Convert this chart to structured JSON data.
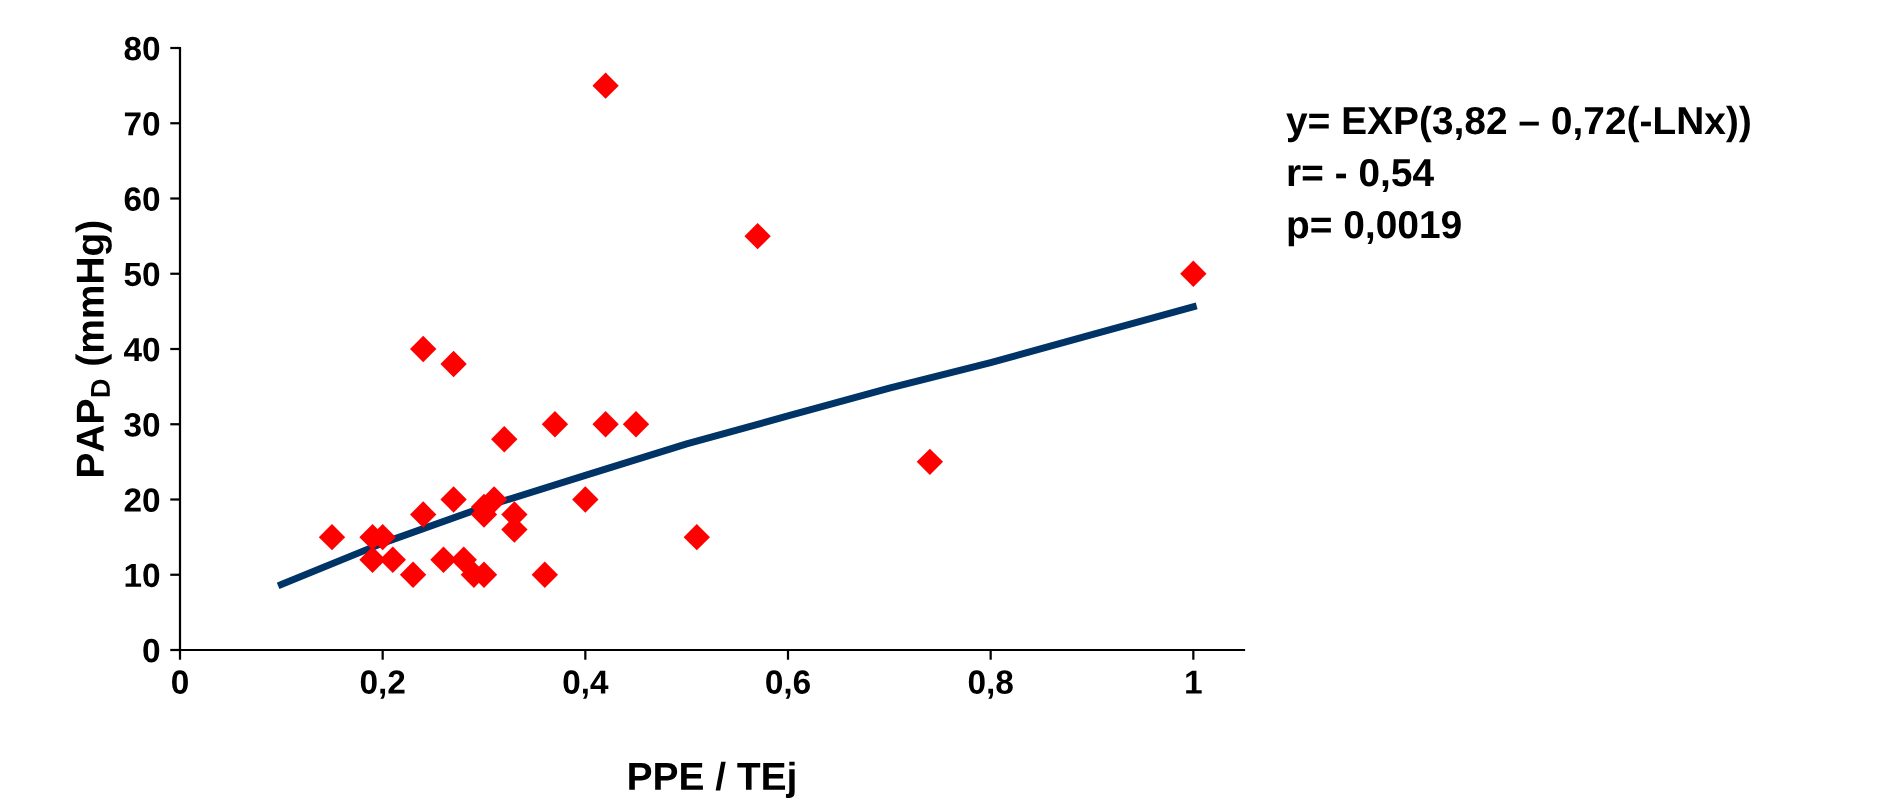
{
  "chart_data": {
    "type": "scatter",
    "xlabel": "PPE / TEj",
    "ylabel": "PAP$_{D}$ (mmHg)",
    "xlim": [
      0,
      1.05
    ],
    "xticks": [
      {
        "value": 0,
        "label": "0"
      },
      {
        "value": 0.2,
        "label": "0,2"
      },
      {
        "value": 0.4,
        "label": "0,4"
      },
      {
        "value": 0.6,
        "label": "0,6"
      },
      {
        "value": 0.8,
        "label": "0,8"
      },
      {
        "value": 1,
        "label": "1"
      }
    ],
    "ylim": [
      0,
      80
    ],
    "yticks": [
      0,
      10,
      20,
      30,
      40,
      50,
      60,
      70,
      80
    ],
    "grid": false,
    "legend": false,
    "series": [
      {
        "color": "#ff0000",
        "marker": "diamond",
        "x": [
          0.15,
          0.19,
          0.2,
          0.19,
          0.21,
          0.23,
          0.24,
          0.24,
          0.27,
          0.27,
          0.26,
          0.28,
          0.29,
          0.3,
          0.3,
          0.31,
          0.3,
          0.32,
          0.33,
          0.33,
          0.36,
          0.37,
          0.4,
          0.42,
          0.45,
          0.51,
          0.57,
          0.74,
          1.0,
          0.42
        ],
        "values": [
          15,
          15,
          15,
          12,
          12,
          10,
          18,
          40,
          38,
          20,
          12,
          12,
          10,
          10,
          18,
          20,
          19,
          28,
          18,
          16,
          10,
          30,
          20,
          30,
          30,
          15,
          55,
          25,
          50,
          75
        ]
      },
      {
        "type": "line",
        "color": "#003366",
        "marker": "none",
        "line_style": "solid",
        "x": [
          0.1,
          0.2,
          0.3,
          0.4,
          0.5,
          0.6,
          0.7,
          0.8,
          0.9,
          1.0
        ],
        "values": [
          8.7,
          14.2,
          19.0,
          23.2,
          27.4,
          31.1,
          34.8,
          38.2,
          41.9,
          45.6
        ]
      }
    ],
    "annotations": [
      "y= EXP(3,82 – 0,72(-LNx))",
      "r= - 0,54",
      "p= 0,0019"
    ]
  }
}
